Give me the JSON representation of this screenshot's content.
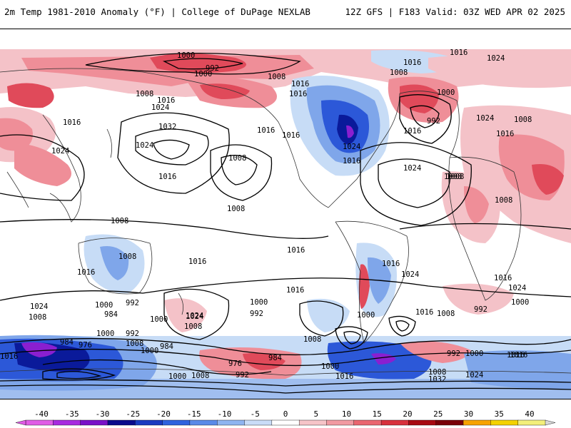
{
  "header": {
    "title": "2m Temp 1981-2010 Anomaly (°F) | College of DuPage NEXLAB",
    "run_info": "12Z GFS | F183 Valid: 03Z WED APR 02 2025"
  },
  "map": {
    "projection": "global cylindrical (Pacific-centered)",
    "shading": "2m temperature anomaly (°F)",
    "contours": "mean sea-level pressure (mb)",
    "pressure_labels": [
      "1000",
      "992",
      "1000",
      "1008",
      "1016",
      "1024",
      "1016",
      "1008",
      "992",
      "1016",
      "1024",
      "1000",
      "1008",
      "1016",
      "1016",
      "1024",
      "1032",
      "1016",
      "1008",
      "1016",
      "1008",
      "1016",
      "1024",
      "1024",
      "1016",
      "1024",
      "1016",
      "1016",
      "1024",
      "1008",
      "1016",
      "1008",
      "1008",
      "1008",
      "1008",
      "1008",
      "1016",
      "1016",
      "1016",
      "1016",
      "1016",
      "1016",
      "1024",
      "1024",
      "1008",
      "1000",
      "984",
      "992",
      "992",
      "1000",
      "992",
      "1000",
      "984",
      "976",
      "976",
      "1008",
      "984",
      "1000",
      "1024",
      "1008",
      "1000",
      "984",
      "992",
      "1000",
      "1016",
      "1016",
      "1008",
      "1024",
      "1016",
      "1008",
      "992",
      "1000",
      "1016",
      "1000",
      "992",
      "1000",
      "1008",
      "1024",
      "1032",
      "1000",
      "1008",
      "1024",
      "1016"
    ],
    "colors": {
      "warm_light": "#f4c2c8",
      "warm_mid": "#ef8e98",
      "warm_strong": "#e04a5a",
      "warm_dark": "#a8121e",
      "cool_light": "#c7dcf6",
      "cool_mid": "#7fa6ea",
      "cool_strong": "#2c58d8",
      "cool_dark": "#0a1a9a",
      "cool_extreme": "#8a1fd0"
    }
  },
  "colorbar": {
    "ticks": [
      "-40",
      "-35",
      "-30",
      "-25",
      "-20",
      "-15",
      "-10",
      "-5",
      "0",
      "5",
      "10",
      "15",
      "20",
      "25",
      "30",
      "35",
      "40"
    ],
    "colors": [
      "#e05ce6",
      "#a82ae0",
      "#7a10c8",
      "#0a0a8c",
      "#1a3ac0",
      "#2f62de",
      "#5a8ae8",
      "#8fb4f0",
      "#c9dcf7",
      "#ffffff",
      "#f6c4c8",
      "#f19aa2",
      "#ea6670",
      "#d8303c",
      "#a80a12",
      "#7a0008",
      "#f7a300",
      "#f4d200",
      "#f3ef7a"
    ]
  }
}
